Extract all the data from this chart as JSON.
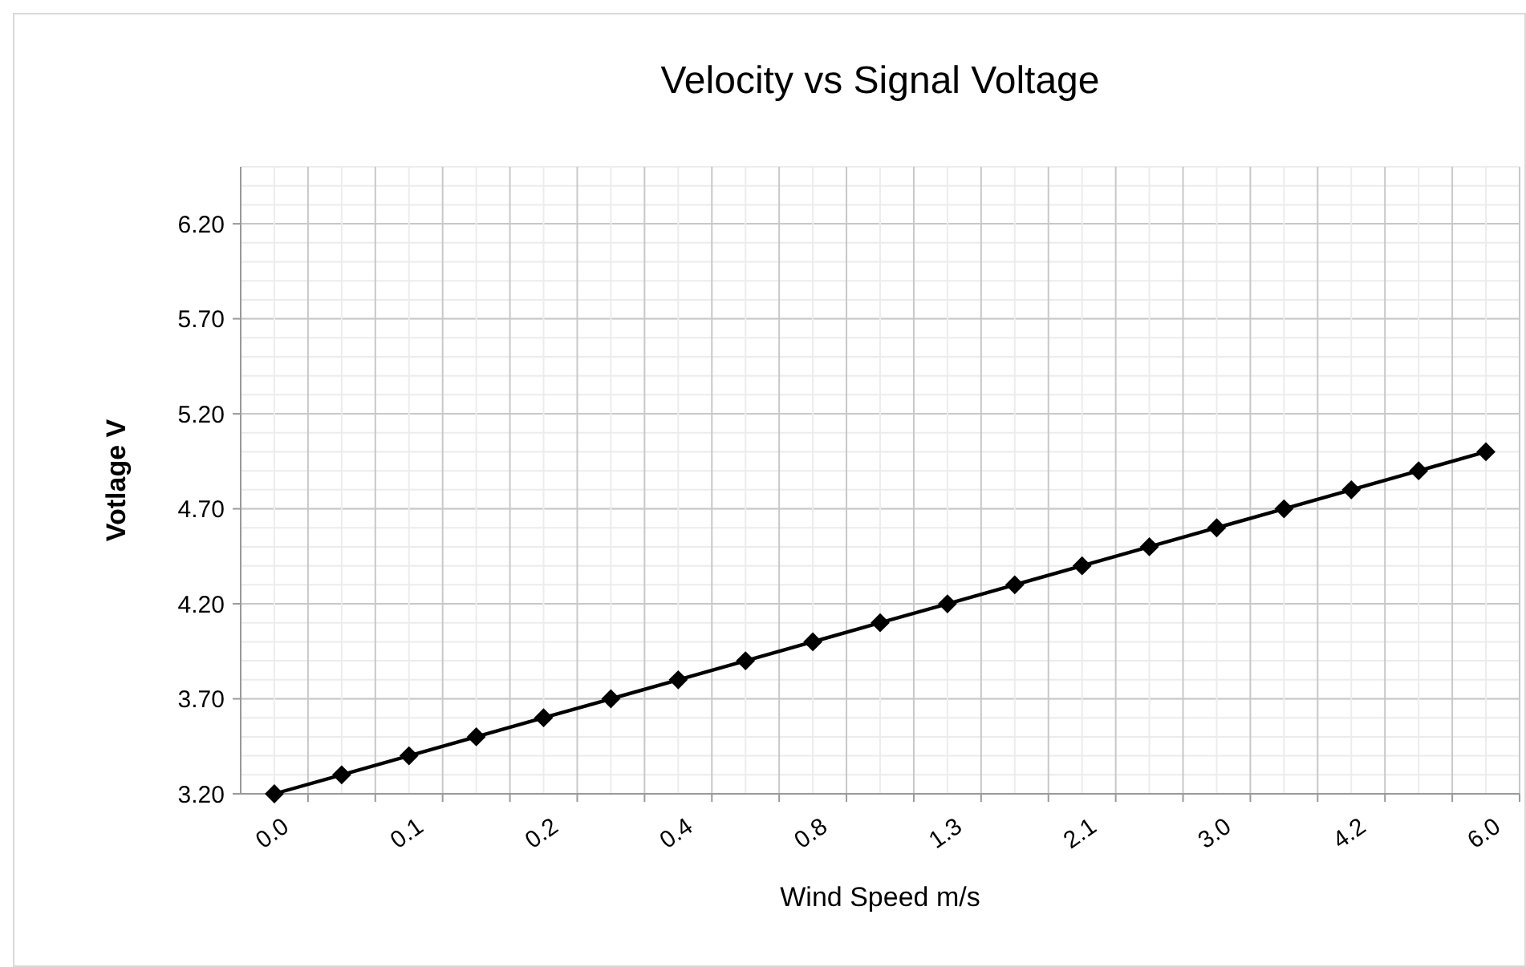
{
  "chart_data": {
    "type": "line",
    "title": "Velocity vs Signal Voltage",
    "xlabel": "Wind Speed m/s",
    "ylabel": "Votlage V",
    "categories": [
      "0.0",
      null,
      "0.1",
      null,
      "0.2",
      null,
      "0.4",
      null,
      "0.8",
      null,
      "1.3",
      null,
      "2.1",
      null,
      "3.0",
      null,
      "4.2",
      null,
      "6.0"
    ],
    "series": [
      {
        "color": "#000000",
        "values": [
          3.2,
          3.3,
          3.4,
          3.5,
          3.6,
          3.7,
          3.8,
          3.9,
          4.0,
          4.1,
          4.2,
          4.3,
          4.4,
          4.5,
          4.6,
          4.7,
          4.8,
          4.9,
          5.0
        ]
      }
    ],
    "ylim": [
      3.2,
      6.5
    ],
    "yticks": [
      {
        "value": 3.2,
        "label": "3.20"
      },
      {
        "value": 3.7,
        "label": "3.70"
      },
      {
        "value": 4.2,
        "label": "4.20"
      },
      {
        "value": 4.7,
        "label": "4.70"
      },
      {
        "value": 5.2,
        "label": "5.20"
      },
      {
        "value": 5.7,
        "label": "5.70"
      },
      {
        "value": 6.2,
        "label": "6.20"
      }
    ],
    "grid": true,
    "marker": "diamond",
    "line_style": "solid"
  }
}
